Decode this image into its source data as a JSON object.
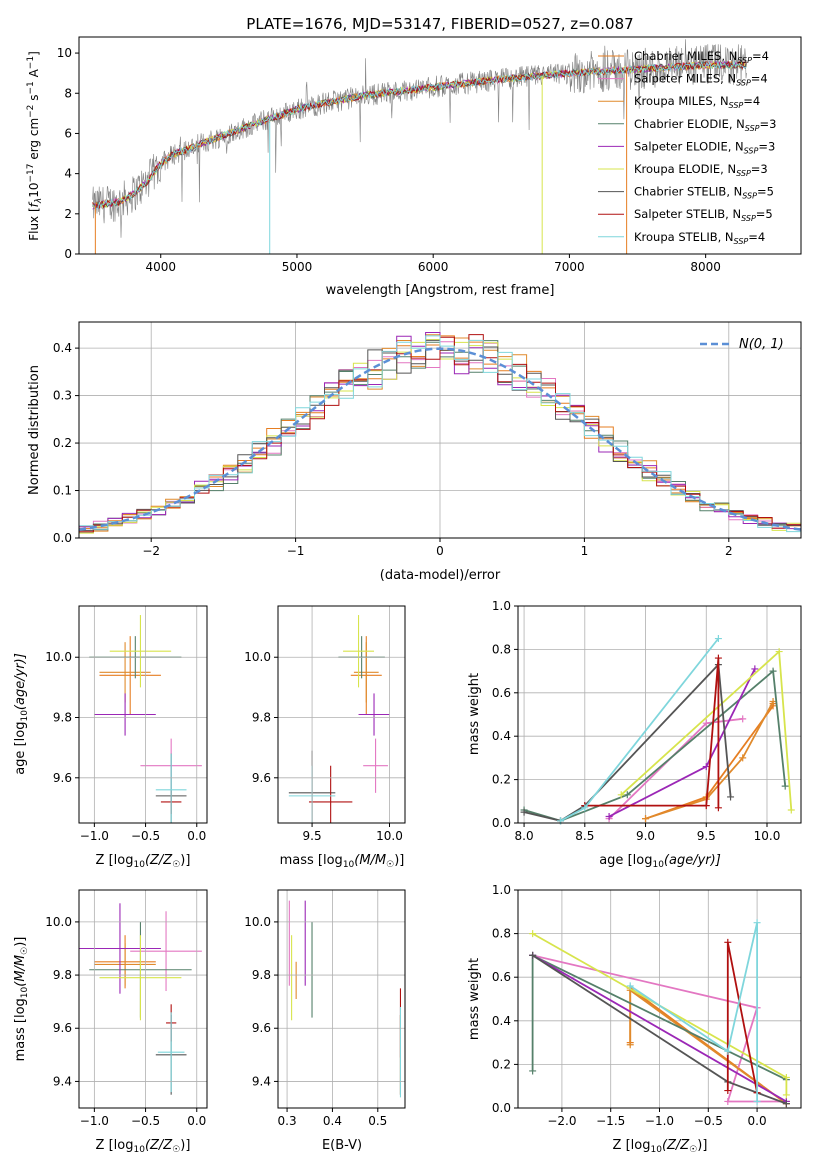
{
  "colors": [
    "#e67e22",
    "#e377c2",
    "#e08a2c",
    "#55806a",
    "#9b27b6",
    "#d7e44c",
    "#555555",
    "#b01010",
    "#7fd6dc",
    "#c6e84b"
  ],
  "ssp_colors": {
    "chabrier_miles": "#e67e22",
    "salpeter_miles": "#e377c2",
    "kroupa_miles": "#e08a2c",
    "chabrier_elodie": "#55806a",
    "salpeter_elodie": "#9b27b6",
    "kroupa_elodie": "#d7e44c",
    "chabrier_stelib": "#555555",
    "salpeter_stelib": "#b01010",
    "kroupa_stelib": "#7fd6dc"
  },
  "chart_data": [
    {
      "id": "spectrum",
      "type": "line",
      "title": "PLATE=1676, MJD=53147, FIBERID=0527, z=0.087",
      "xlabel": "wavelength [Angstrom, rest frame]",
      "ylabel_main": "Flux [",
      "ylabel_f": "f",
      "ylabel_lam": "λ",
      "ylabel_10": "10",
      "ylabel_exp17": "−17",
      "ylabel_unit": " erg cm",
      "ylabel_exp2": "−2",
      "ylabel_s": " s",
      "ylabel_exp1": "−1",
      "ylabel_A": " A",
      "ylabel_expA": "−1",
      "ylabel_end": "]",
      "xlim": [
        3400,
        8700
      ],
      "ylim": [
        0,
        10.8
      ],
      "xticks": [
        "4000",
        "5000",
        "6000",
        "7000",
        "8000"
      ],
      "yticks": [
        "0",
        "2",
        "4",
        "6",
        "8",
        "10"
      ],
      "legend_position": "top-right",
      "legend": [
        {
          "base": "Chabrier MILES, N",
          "sub": "SSP",
          "tail": "=4"
        },
        {
          "base": "Salpeter MILES, N",
          "sub": "SSP",
          "tail": "=4"
        },
        {
          "base": "Kroupa MILES, N",
          "sub": "SSP",
          "tail": "=4"
        },
        {
          "base": "Chabrier ELODIE, N",
          "sub": "SSP",
          "tail": "=3"
        },
        {
          "base": "Salpeter ELODIE, N",
          "sub": "SSP",
          "tail": "=3"
        },
        {
          "base": "Kroupa ELODIE, N",
          "sub": "SSP",
          "tail": "=3"
        },
        {
          "base": "Chabrier STELIB, N",
          "sub": "SSP",
          "tail": "=5"
        },
        {
          "base": "Salpeter STELIB, N",
          "sub": "SSP",
          "tail": "=5"
        },
        {
          "base": "Kroupa STELIB, N",
          "sub": "SSP",
          "tail": "=4"
        }
      ],
      "continuum": {
        "x": [
          3500,
          3600,
          3700,
          3800,
          3900,
          4000,
          4100,
          4200,
          4300,
          4500,
          4700,
          5000,
          5200,
          5500,
          6000,
          6500,
          7000,
          7500,
          8000,
          8300
        ],
        "y": [
          2.4,
          2.5,
          2.6,
          3.0,
          3.6,
          4.5,
          5.0,
          5.2,
          5.5,
          6.0,
          6.5,
          7.2,
          7.5,
          7.9,
          8.3,
          8.7,
          9.0,
          9.2,
          9.4,
          9.4
        ]
      }
    },
    {
      "id": "residuals",
      "type": "histogram",
      "xlabel": "(data-model)/error",
      "ylabel": "Normed distribution",
      "xlim": [
        -2.5,
        2.5
      ],
      "ylim": [
        0,
        0.455
      ],
      "xticks": [
        "−2",
        "−1",
        "0",
        "1",
        "2"
      ],
      "yticks": [
        "0.0",
        "0.1",
        "0.2",
        "0.3",
        "0.4"
      ],
      "grid": true,
      "legend_position": "top-right",
      "legend_label": "N(0, 1)",
      "bin_width": 0.1
    },
    {
      "id": "age_vs_Z",
      "type": "errorbar",
      "xlabel_pre": "Z [log",
      "xlabel_sub": "10",
      "xlabel_mid": "(Z/Z",
      "xlabel_sun": "☉",
      "xlabel_end": ")]",
      "ylabel_pre": "age  [log",
      "ylabel_sub": "10",
      "ylabel_end": "(age/yr)]",
      "xlim": [
        -1.15,
        0.1
      ],
      "ylim": [
        9.45,
        10.17
      ],
      "xticks": [
        "−1.0",
        "−0.5",
        "0.0"
      ],
      "yticks": [
        "9.6",
        "9.8",
        "10.0"
      ],
      "grid": true,
      "points": [
        {
          "x": -0.65,
          "y": 9.94,
          "xe": 0.3,
          "ye": 0.13
        },
        {
          "x": -0.25,
          "y": 9.64,
          "xe": 0.3,
          "ye": 0.09
        },
        {
          "x": -0.7,
          "y": 9.95,
          "xe": 0.25,
          "ye": 0.1
        },
        {
          "x": -0.6,
          "y": 10.0,
          "xe": 0.45,
          "ye": 0.07
        },
        {
          "x": -0.7,
          "y": 9.81,
          "xe": 0.3,
          "ye": 0.07
        },
        {
          "x": -0.55,
          "y": 10.02,
          "xe": 0.3,
          "ye": 0.12
        },
        {
          "x": -0.25,
          "y": 9.54,
          "xe": 0.15,
          "ye": 0.14
        },
        {
          "x": -0.25,
          "y": 9.52,
          "xe": 0.1,
          "ye": 0.04
        },
        {
          "x": -0.25,
          "y": 9.56,
          "xe": 0.15,
          "ye": 0.12
        }
      ]
    },
    {
      "id": "age_vs_mass",
      "type": "errorbar",
      "xlabel_pre": "mass [log",
      "xlabel_sub": "10",
      "xlabel_mid": "(M/M",
      "xlabel_sun": "☉",
      "xlabel_end": ")]",
      "xlim": [
        9.28,
        10.1
      ],
      "ylim": [
        9.45,
        10.17
      ],
      "xticks": [
        "9.5",
        "10.0"
      ],
      "yticks": [
        "9.6",
        "9.8",
        "10.0"
      ],
      "grid": true,
      "points": [
        {
          "x": 9.85,
          "y": 9.94,
          "xe": 0.1,
          "ye": 0.13
        },
        {
          "x": 9.91,
          "y": 9.64,
          "xe": 0.08,
          "ye": 0.09
        },
        {
          "x": 9.85,
          "y": 9.95,
          "xe": 0.08,
          "ye": 0.1
        },
        {
          "x": 9.82,
          "y": 10.0,
          "xe": 0.15,
          "ye": 0.07
        },
        {
          "x": 9.9,
          "y": 9.81,
          "xe": 0.1,
          "ye": 0.07
        },
        {
          "x": 9.8,
          "y": 10.02,
          "xe": 0.1,
          "ye": 0.12
        },
        {
          "x": 9.5,
          "y": 9.55,
          "xe": 0.15,
          "ye": 0.14
        },
        {
          "x": 9.62,
          "y": 9.52,
          "xe": 0.14,
          "ye": 0.12
        },
        {
          "x": 9.5,
          "y": 9.54,
          "xe": 0.15,
          "ye": 0.1
        }
      ]
    },
    {
      "id": "mass_weight_vs_age",
      "type": "line",
      "xlabel_pre": "age  [log",
      "xlabel_sub": "10",
      "xlabel_end": "(age/yr)]",
      "ylabel": "mass weight",
      "xlim": [
        7.95,
        10.28
      ],
      "ylim": [
        0,
        1.0
      ],
      "xticks": [
        "8.0",
        "8.5",
        "9.0",
        "9.5",
        "10.0"
      ],
      "yticks": [
        "0.0",
        "0.2",
        "0.4",
        "0.6",
        "0.8",
        "1.0"
      ],
      "grid": true,
      "series": [
        {
          "x": [
            9.0,
            9.5,
            10.05,
            10.05
          ],
          "y": [
            0.02,
            0.12,
            0.54,
            0.55
          ]
        },
        {
          "x": [
            8.7,
            9.5,
            9.8
          ],
          "y": [
            0.02,
            0.46,
            0.48
          ]
        },
        {
          "x": [
            9.0,
            9.5,
            9.8,
            10.05
          ],
          "y": [
            0.02,
            0.11,
            0.3,
            0.56
          ]
        },
        {
          "x": [
            8.0,
            8.3,
            8.85,
            10.05,
            10.15
          ],
          "y": [
            0.06,
            0.01,
            0.13,
            0.7,
            0.17
          ]
        },
        {
          "x": [
            8.7,
            9.5,
            9.9
          ],
          "y": [
            0.03,
            0.26,
            0.71
          ]
        },
        {
          "x": [
            8.8,
            10.1,
            10.2
          ],
          "y": [
            0.13,
            0.79,
            0.06
          ]
        },
        {
          "x": [
            8.0,
            8.3,
            8.5,
            9.6,
            9.7
          ],
          "y": [
            0.05,
            0.01,
            0.08,
            0.73,
            0.12
          ]
        },
        {
          "x": [
            8.5,
            9.5,
            9.6,
            9.6
          ],
          "y": [
            0.08,
            0.08,
            0.76,
            0.07
          ]
        },
        {
          "x": [
            8.3,
            8.5,
            9.6
          ],
          "y": [
            0.01,
            0.07,
            0.85
          ]
        }
      ]
    },
    {
      "id": "mass_vs_Z",
      "type": "errorbar",
      "xlabel_pre": "Z [log",
      "xlabel_sub": "10",
      "xlabel_mid": "(Z/Z",
      "xlabel_sun": "☉",
      "xlabel_end": ")]",
      "ylabel_pre": "mass [log",
      "ylabel_sub": "10",
      "ylabel_mid": "(M/M",
      "ylabel_sun": "☉",
      "ylabel_end": ")]",
      "xlim": [
        -1.15,
        0.1
      ],
      "ylim": [
        9.3,
        10.12
      ],
      "xticks": [
        "−1.0",
        "−0.5",
        "0.0"
      ],
      "yticks": [
        "9.4",
        "9.6",
        "9.8",
        "10.0"
      ],
      "grid": true,
      "points": [
        {
          "x": -0.7,
          "y": 9.85,
          "xe": 0.3,
          "ye": 0.1
        },
        {
          "x": -0.3,
          "y": 9.89,
          "xe": 0.35,
          "ye": 0.15
        },
        {
          "x": -0.7,
          "y": 9.84,
          "xe": 0.3,
          "ye": 0.08
        },
        {
          "x": -0.55,
          "y": 9.82,
          "xe": 0.5,
          "ye": 0.18
        },
        {
          "x": -0.75,
          "y": 9.9,
          "xe": 0.4,
          "ye": 0.17
        },
        {
          "x": -0.55,
          "y": 9.79,
          "xe": 0.4,
          "ye": 0.16
        },
        {
          "x": -0.25,
          "y": 9.5,
          "xe": 0.15,
          "ye": 0.15
        },
        {
          "x": -0.25,
          "y": 9.62,
          "xe": 0.05,
          "ye": 0.07
        },
        {
          "x": -0.25,
          "y": 9.51,
          "xe": 0.13,
          "ye": 0.15
        }
      ]
    },
    {
      "id": "mass_vs_ebv",
      "type": "errorbar",
      "xlabel": "E(B-V)",
      "xlim": [
        0.28,
        0.56
      ],
      "ylim": [
        9.3,
        10.12
      ],
      "xticks": [
        "0.3",
        "0.4",
        "0.5"
      ],
      "yticks": [
        "9.4",
        "9.6",
        "9.8",
        "10.0"
      ],
      "grid": true,
      "points": [
        {
          "x": 0.55,
          "y": 9.5,
          "xe": 0.0,
          "ye": 0.15
        },
        {
          "x": 0.305,
          "y": 9.92,
          "xe": 0.0,
          "ye": 0.16
        },
        {
          "x": 0.32,
          "y": 9.78,
          "xe": 0.0,
          "ye": 0.07
        },
        {
          "x": 0.355,
          "y": 9.82,
          "xe": 0.0,
          "ye": 0.18
        },
        {
          "x": 0.34,
          "y": 9.92,
          "xe": 0.0,
          "ye": 0.16
        },
        {
          "x": 0.31,
          "y": 9.79,
          "xe": 0.0,
          "ye": 0.16
        },
        {
          "x": 0.55,
          "y": 9.5,
          "xe": 0.0,
          "ye": 0.15
        },
        {
          "x": 0.55,
          "y": 9.62,
          "xe": 0.0,
          "ye": 0.13
        },
        {
          "x": 0.55,
          "y": 9.51,
          "xe": 0.0,
          "ye": 0.17
        }
      ]
    },
    {
      "id": "mass_weight_vs_Z",
      "type": "line",
      "xlabel_pre": "Z [log",
      "xlabel_sub": "10",
      "xlabel_mid": "(Z/Z",
      "xlabel_sun": "☉",
      "xlabel_end": ")]",
      "ylabel": "mass weight",
      "xlim": [
        -2.45,
        0.45
      ],
      "ylim": [
        0,
        1.0
      ],
      "xticks": [
        "−2.0",
        "−1.5",
        "−1.0",
        "−0.5",
        "0.0"
      ],
      "yticks": [
        "0.0",
        "0.2",
        "0.4",
        "0.6",
        "0.8",
        "1.0"
      ],
      "grid": true,
      "series": [
        {
          "x": [
            -1.3,
            -1.3,
            0.3
          ],
          "y": [
            0.3,
            0.55,
            0.02
          ]
        },
        {
          "x": [
            -2.3,
            0.0,
            -0.3,
            0.3
          ],
          "y": [
            0.7,
            0.46,
            0.03,
            0.03
          ]
        },
        {
          "x": [
            -1.3,
            -1.3,
            0.3
          ],
          "y": [
            0.29,
            0.54,
            0.02
          ]
        },
        {
          "x": [
            -2.3,
            -2.3,
            0.3
          ],
          "y": [
            0.17,
            0.7,
            0.13
          ]
        },
        {
          "x": [
            -2.3,
            0.3
          ],
          "y": [
            0.7,
            0.03
          ]
        },
        {
          "x": [
            -2.3,
            0.3,
            0.3
          ],
          "y": [
            0.8,
            0.14,
            0.06
          ]
        },
        {
          "x": [
            -2.3,
            -0.3,
            0.3
          ],
          "y": [
            0.7,
            0.12,
            0.02
          ]
        },
        {
          "x": [
            -0.3,
            -0.3,
            0.0
          ],
          "y": [
            0.08,
            0.76,
            0.07
          ]
        },
        {
          "x": [
            -1.3,
            -0.3,
            0.0,
            0.0
          ],
          "y": [
            0.56,
            0.26,
            0.85,
            0.03
          ]
        }
      ]
    }
  ],
  "gaussian_label": "N(0, 1)"
}
